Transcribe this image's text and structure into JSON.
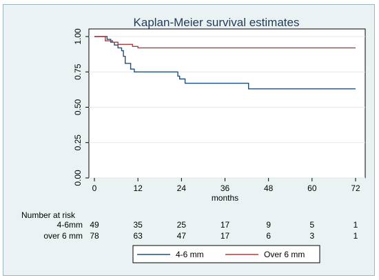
{
  "chart_data": {
    "type": "line",
    "title": "Kaplan-Meier survival estimates",
    "xlabel": "months",
    "ylabel": "",
    "xlim": [
      0,
      72
    ],
    "ylim": [
      0,
      1
    ],
    "x_ticks": [
      0,
      12,
      24,
      36,
      48,
      60,
      72
    ],
    "y_ticks": [
      "0.00",
      "0.25",
      "0.50",
      "0.75",
      "1.00"
    ],
    "grid": "horizontal",
    "legend_position": "bottom",
    "series": [
      {
        "name": "4-6 mm",
        "color": "#1f4e79",
        "step": true,
        "points": [
          [
            0,
            1.0
          ],
          [
            3.5,
            1.0
          ],
          [
            3.5,
            0.98
          ],
          [
            4.5,
            0.98
          ],
          [
            4.5,
            0.96
          ],
          [
            5.5,
            0.96
          ],
          [
            5.5,
            0.94
          ],
          [
            6.5,
            0.94
          ],
          [
            6.5,
            0.92
          ],
          [
            7.5,
            0.92
          ],
          [
            7.5,
            0.9
          ],
          [
            8,
            0.9
          ],
          [
            8,
            0.86
          ],
          [
            8.5,
            0.86
          ],
          [
            8.5,
            0.81
          ],
          [
            10,
            0.81
          ],
          [
            10,
            0.77
          ],
          [
            11,
            0.77
          ],
          [
            11,
            0.75
          ],
          [
            23,
            0.75
          ],
          [
            23,
            0.72
          ],
          [
            23.5,
            0.72
          ],
          [
            23.5,
            0.7
          ],
          [
            25,
            0.7
          ],
          [
            25,
            0.67
          ],
          [
            42.5,
            0.67
          ],
          [
            42.5,
            0.63
          ],
          [
            72,
            0.63
          ]
        ]
      },
      {
        "name": "Over 6 mm",
        "color": "#b23a3a",
        "step": true,
        "points": [
          [
            0,
            1.0
          ],
          [
            3,
            1.0
          ],
          [
            3,
            0.97
          ],
          [
            5,
            0.97
          ],
          [
            5,
            0.96
          ],
          [
            6.5,
            0.96
          ],
          [
            6.5,
            0.945
          ],
          [
            10.5,
            0.945
          ],
          [
            10.5,
            0.93
          ],
          [
            12,
            0.93
          ],
          [
            12,
            0.92
          ],
          [
            72,
            0.92
          ]
        ]
      }
    ]
  },
  "risk_table": {
    "header": "Number at risk",
    "x": [
      0,
      12,
      24,
      36,
      48,
      60,
      72
    ],
    "rows": [
      {
        "label": "4-6mm",
        "values": [
          "49",
          "35",
          "25",
          "17",
          "9",
          "5",
          "1"
        ]
      },
      {
        "label": "over 6 mm",
        "values": [
          "78",
          "63",
          "47",
          "17",
          "6",
          "3",
          "1"
        ]
      }
    ]
  }
}
